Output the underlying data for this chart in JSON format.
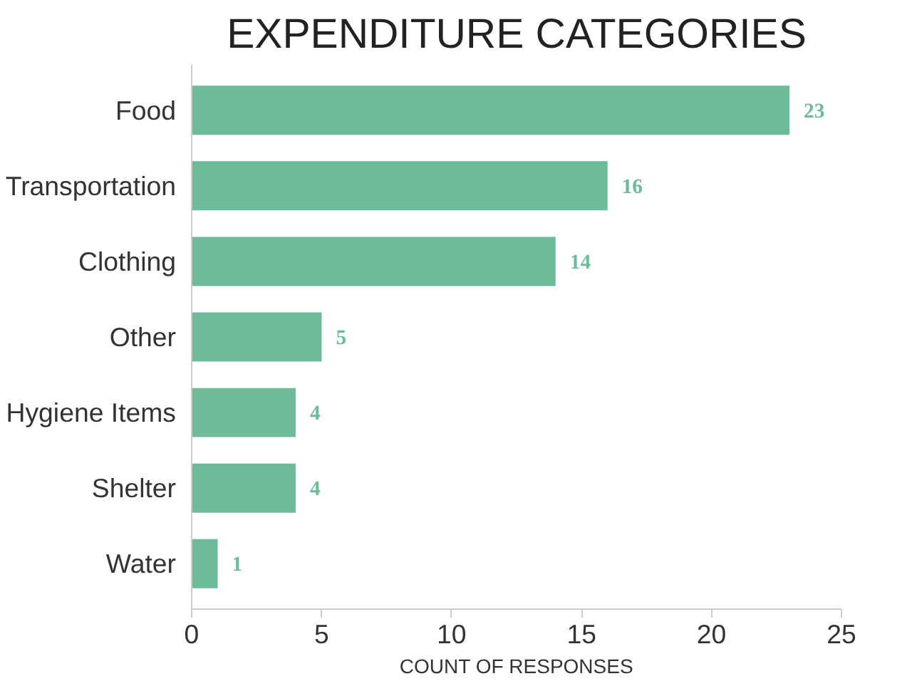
{
  "chart_data": {
    "type": "bar",
    "orientation": "horizontal",
    "title": "EXPENDITURE CATEGORIES",
    "xlabel": "COUNT OF RESPONSES",
    "categories": [
      "Food",
      "Transportation",
      "Clothing",
      "Other",
      "Hygiene Items",
      "Shelter",
      "Water"
    ],
    "values": [
      23,
      16,
      14,
      5,
      4,
      4,
      1
    ],
    "color": "#6dbb98",
    "xlim": [
      0,
      25
    ],
    "xticks": [
      0,
      5,
      10,
      15,
      20,
      25
    ],
    "grid": false,
    "data_labels": true
  }
}
